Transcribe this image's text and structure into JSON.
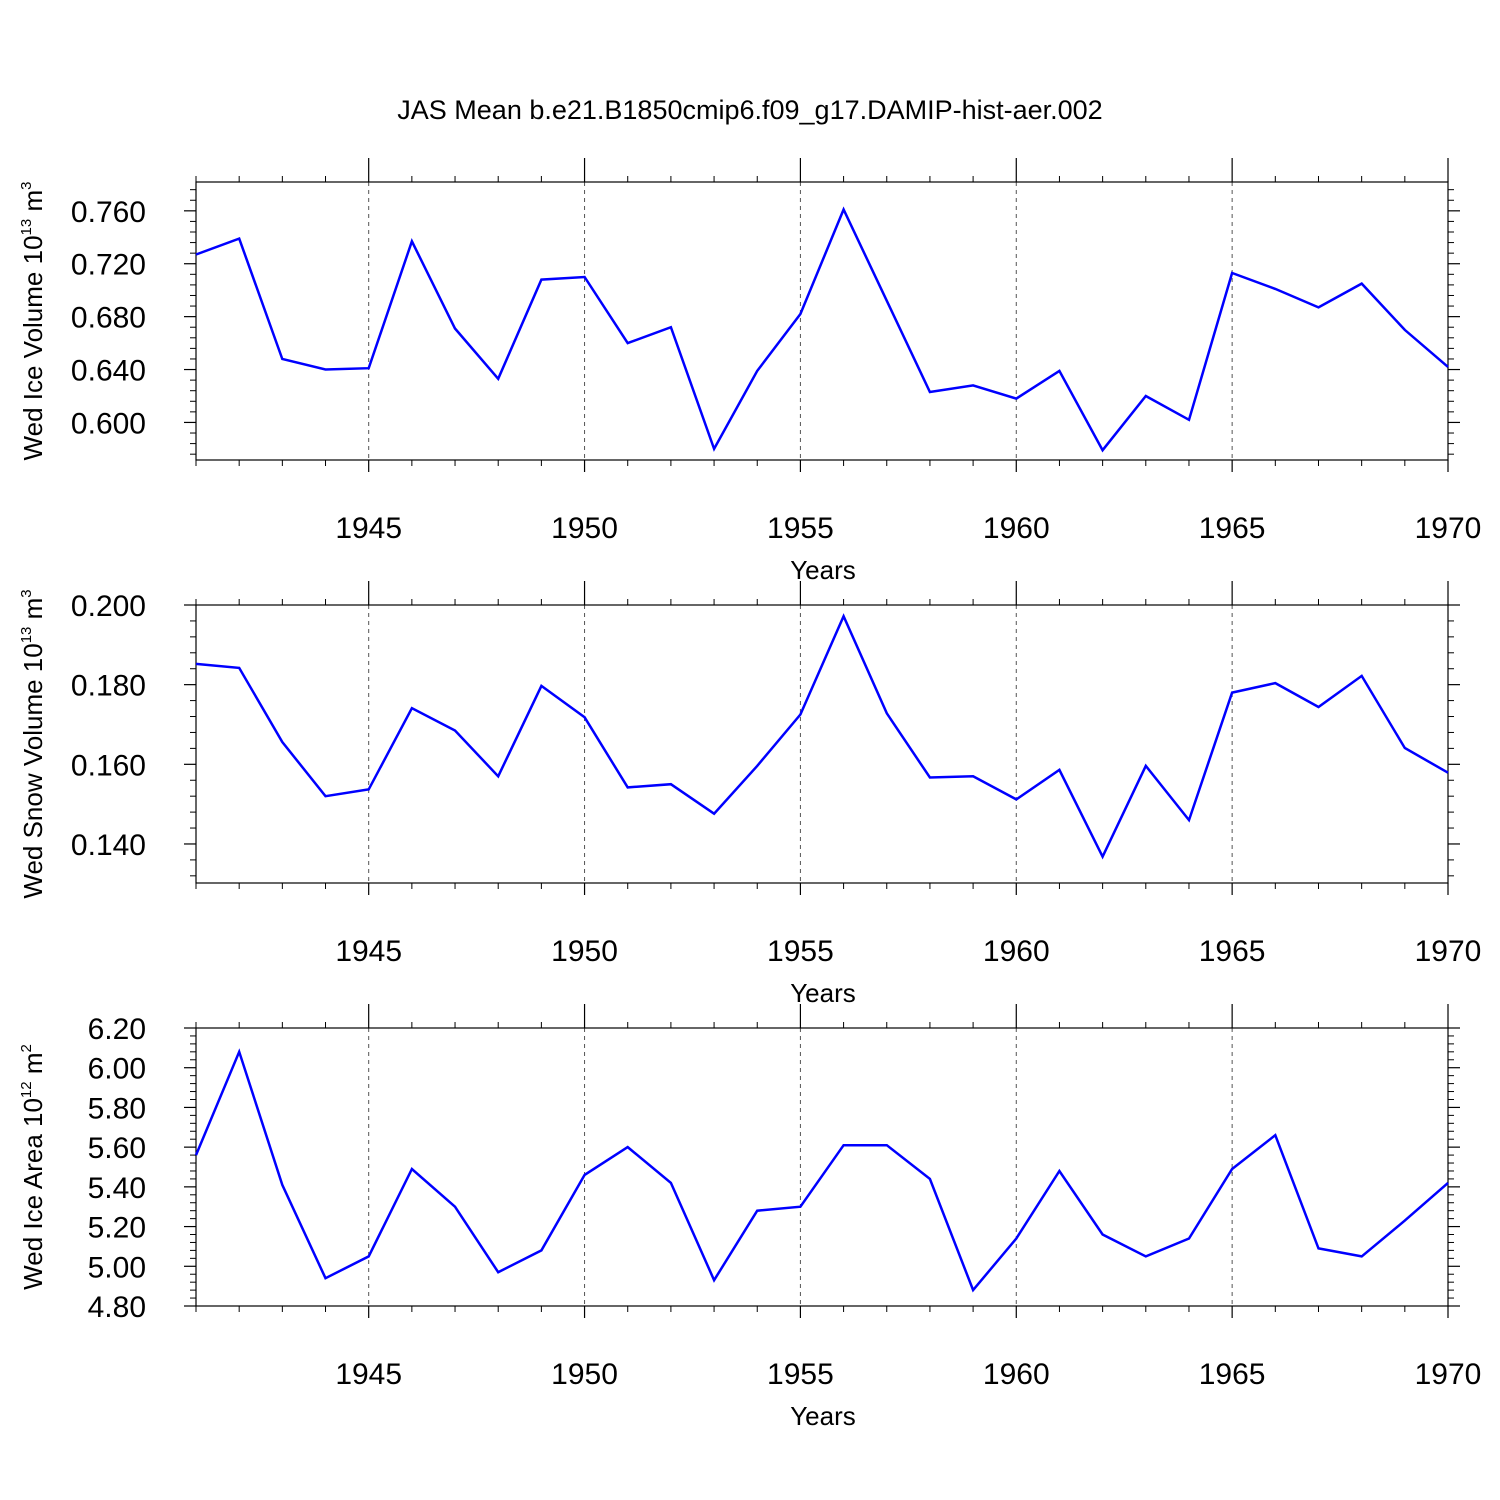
{
  "figure": {
    "title": "JAS Mean b.e21.B1850cmip6.f09_g17.DAMIP-hist-aer.002"
  },
  "chart_data": [
    {
      "type": "line",
      "ylabel": {
        "text": "Wed Ice Volume 10",
        "exp": "13",
        "unit": " m",
        "unit_exp": "3"
      },
      "xlabel": "Years",
      "xlim": [
        1941,
        1970
      ],
      "ylim": [
        0.5716,
        0.7818
      ],
      "yticks": [
        0.6,
        0.64,
        0.68,
        0.72,
        0.76
      ],
      "ytick_labels": [
        "0.600",
        "0.640",
        "0.680",
        "0.720",
        "0.760"
      ],
      "yminor_step": 0.008,
      "xticks": [
        1945,
        1950,
        1955,
        1960,
        1965,
        1970
      ],
      "xtick_labels": [
        "1945",
        "1950",
        "1955",
        "1960",
        "1965",
        "1970"
      ],
      "grid": "vertical dashed at major x ticks",
      "line_color": "#0000ff",
      "x": [
        1941,
        1942,
        1943,
        1944,
        1945,
        1946,
        1947,
        1948,
        1949,
        1950,
        1951,
        1952,
        1953,
        1954,
        1955,
        1956,
        1957,
        1958,
        1959,
        1960,
        1961,
        1962,
        1963,
        1964,
        1965,
        1966,
        1967,
        1968,
        1969,
        1970
      ],
      "values": [
        0.727,
        0.739,
        0.648,
        0.64,
        0.641,
        0.737,
        0.671,
        0.633,
        0.708,
        0.71,
        0.66,
        0.672,
        0.58,
        0.639,
        0.682,
        0.761,
        0.692,
        0.623,
        0.628,
        0.618,
        0.639,
        0.579,
        0.62,
        0.602,
        0.713,
        0.701,
        0.687,
        0.705,
        0.67,
        0.642
      ]
    },
    {
      "type": "line",
      "ylabel": {
        "text": "Wed Snow Volume 10",
        "exp": "13",
        "unit": " m",
        "unit_exp": "3"
      },
      "xlabel": "Years",
      "xlim": [
        1941,
        1970
      ],
      "ylim": [
        0.1302,
        0.2
      ],
      "yticks": [
        0.14,
        0.16,
        0.18,
        0.2
      ],
      "ytick_labels": [
        "0.140",
        "0.160",
        "0.180",
        "0.200"
      ],
      "yminor_step": 0.004,
      "xticks": [
        1945,
        1950,
        1955,
        1960,
        1965,
        1970
      ],
      "xtick_labels": [
        "1945",
        "1950",
        "1955",
        "1960",
        "1965",
        "1970"
      ],
      "grid": "vertical dashed at major x ticks",
      "line_color": "#0000ff",
      "x": [
        1941,
        1942,
        1943,
        1944,
        1945,
        1946,
        1947,
        1948,
        1949,
        1950,
        1951,
        1952,
        1953,
        1954,
        1955,
        1956,
        1957,
        1958,
        1959,
        1960,
        1961,
        1962,
        1963,
        1964,
        1965,
        1966,
        1967,
        1968,
        1969,
        1970
      ],
      "values": [
        0.1852,
        0.1842,
        0.1656,
        0.152,
        0.1537,
        0.1741,
        0.1685,
        0.157,
        0.1797,
        0.1718,
        0.1542,
        0.155,
        0.1476,
        0.1596,
        0.1725,
        0.1972,
        0.1728,
        0.1567,
        0.157,
        0.1512,
        0.1586,
        0.1368,
        0.1596,
        0.146,
        0.178,
        0.1804,
        0.1744,
        0.1822,
        0.1641,
        0.1579
      ]
    },
    {
      "type": "line",
      "ylabel": {
        "text": "Wed Ice Area 10",
        "exp": "12",
        "unit": " m",
        "unit_exp": "2"
      },
      "xlabel": "Years",
      "xlim": [
        1941,
        1970
      ],
      "ylim": [
        4.8,
        6.2
      ],
      "yticks": [
        4.8,
        5.0,
        5.2,
        5.4,
        5.6,
        5.8,
        6.0,
        6.2
      ],
      "ytick_labels": [
        "4.80",
        "5.00",
        "5.20",
        "5.40",
        "5.60",
        "5.80",
        "6.00",
        "6.20"
      ],
      "yminor_step": 0.04,
      "xticks": [
        1945,
        1950,
        1955,
        1960,
        1965,
        1970
      ],
      "xtick_labels": [
        "1945",
        "1950",
        "1955",
        "1960",
        "1965",
        "1970"
      ],
      "grid": "vertical dashed at major x ticks",
      "line_color": "#0000ff",
      "x": [
        1941,
        1942,
        1943,
        1944,
        1945,
        1946,
        1947,
        1948,
        1949,
        1950,
        1951,
        1952,
        1953,
        1954,
        1955,
        1956,
        1957,
        1958,
        1959,
        1960,
        1961,
        1962,
        1963,
        1964,
        1965,
        1966,
        1967,
        1968,
        1969,
        1970
      ],
      "values": [
        5.56,
        6.08,
        5.41,
        4.94,
        5.05,
        5.49,
        5.3,
        4.97,
        5.08,
        5.46,
        5.6,
        5.42,
        4.93,
        5.28,
        5.3,
        5.61,
        5.61,
        5.44,
        4.88,
        5.14,
        5.48,
        5.16,
        5.05,
        5.14,
        5.49,
        5.66,
        5.09,
        5.05,
        5.23,
        5.42
      ]
    }
  ]
}
